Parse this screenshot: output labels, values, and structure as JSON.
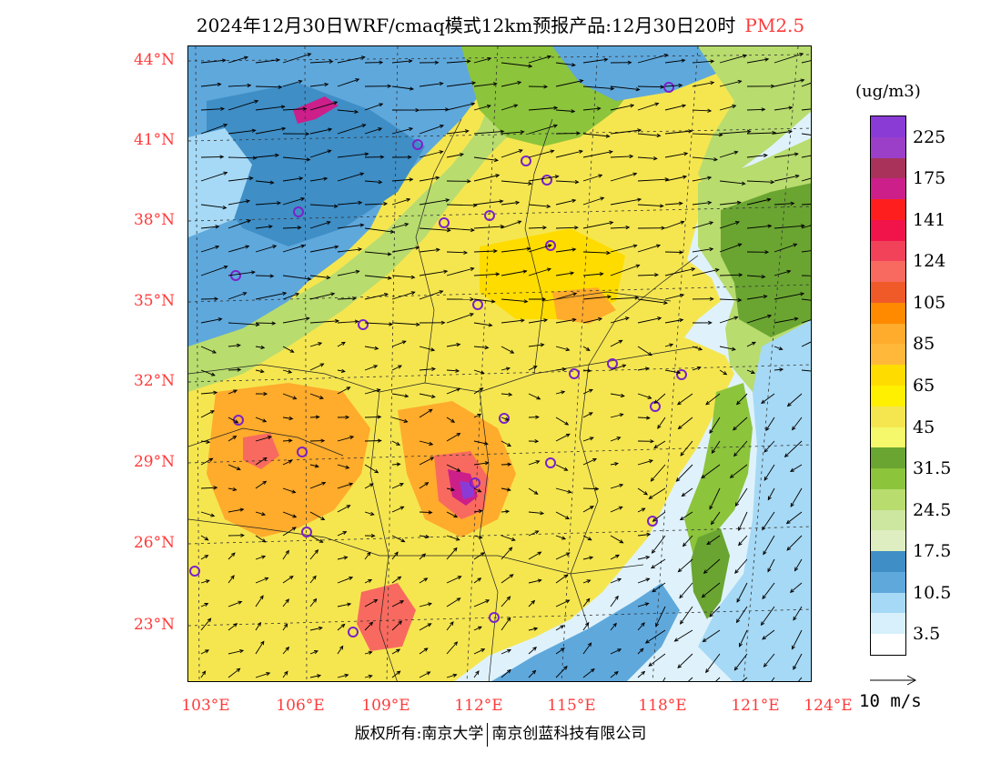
{
  "title": {
    "main": "2024年12月30日WRF/cmaq模式12km预报产品:12月30日20时",
    "pollutant": "PM2.5"
  },
  "colors": {
    "label_red": "#ff3a3a",
    "sea": "#dff2fb",
    "land_base": "#f5e650"
  },
  "axes": {
    "lat_labels": [
      "44°N",
      "41°N",
      "38°N",
      "35°N",
      "32°N",
      "29°N",
      "26°N",
      "23°N"
    ],
    "lon_labels": [
      "103°E",
      "106°E",
      "109°E",
      "112°E",
      "115°E",
      "118°E",
      "121°E",
      "124°E"
    ]
  },
  "colorbar": {
    "unit": "(ug/m3)",
    "levels": [
      {
        "label": "225",
        "color": "#8a3bd6"
      },
      {
        "label": "",
        "color": "#9b3fc9"
      },
      {
        "label": "175",
        "color": "#a8325a"
      },
      {
        "label": "",
        "color": "#cc1f8a"
      },
      {
        "label": "141",
        "color": "#ff1e1e"
      },
      {
        "label": "",
        "color": "#f0144a"
      },
      {
        "label": "124",
        "color": "#f2425a"
      },
      {
        "label": "",
        "color": "#f86a5f"
      },
      {
        "label": "105",
        "color": "#f05a28"
      },
      {
        "label": "",
        "color": "#ff8a00"
      },
      {
        "label": "85",
        "color": "#ffab2c"
      },
      {
        "label": "",
        "color": "#ffb83a"
      },
      {
        "label": "65",
        "color": "#ffdc00"
      },
      {
        "label": "",
        "color": "#fff000"
      },
      {
        "label": "45",
        "color": "#f5e650"
      },
      {
        "label": "",
        "color": "#f4f86a"
      },
      {
        "label": "31.5",
        "color": "#6aa532"
      },
      {
        "label": "",
        "color": "#8cc43c"
      },
      {
        "label": "24.5",
        "color": "#b8dc6e"
      },
      {
        "label": "",
        "color": "#cde6a0"
      },
      {
        "label": "17.5",
        "color": "#dfeec0"
      },
      {
        "label": "",
        "color": "#3f8ec6"
      },
      {
        "label": "10.5",
        "color": "#5fa8dc"
      },
      {
        "label": "",
        "color": "#a6d9f5"
      },
      {
        "label": "3.5",
        "color": "#d7f0fb"
      },
      {
        "label": "",
        "color": "#ffffff"
      }
    ]
  },
  "wind_reference": {
    "label": "10 m/s"
  },
  "copyright": {
    "left": "版权所有:南京大学",
    "right": "南京创蓝科技有限公司"
  }
}
